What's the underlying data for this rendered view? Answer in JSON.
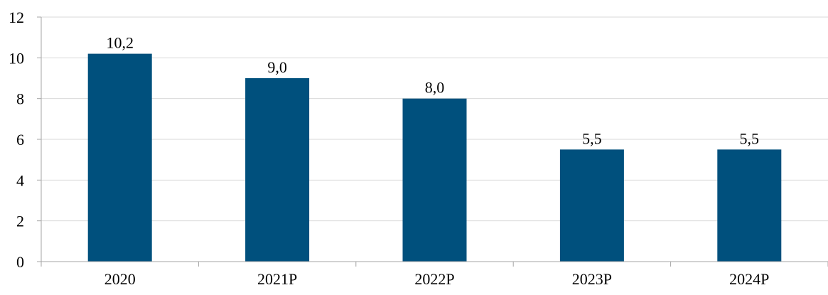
{
  "chart_data": {
    "type": "bar",
    "categories": [
      "2020",
      "2021P",
      "2022P",
      "2023P",
      "2024P"
    ],
    "values": [
      10.2,
      9.0,
      8.0,
      5.5,
      5.5
    ],
    "data_labels": [
      "10,2",
      "9,0",
      "8,0",
      "5,5",
      "5,5"
    ],
    "title": "",
    "xlabel": "",
    "ylabel": "",
    "ylim": [
      0,
      12
    ],
    "yticks": [
      0,
      2,
      4,
      6,
      8,
      10,
      12
    ],
    "grid": true,
    "legend": "none",
    "bar_color": "#00507D",
    "grid_color": "#D9D9D9",
    "axis_color": "#A6A6A6"
  }
}
